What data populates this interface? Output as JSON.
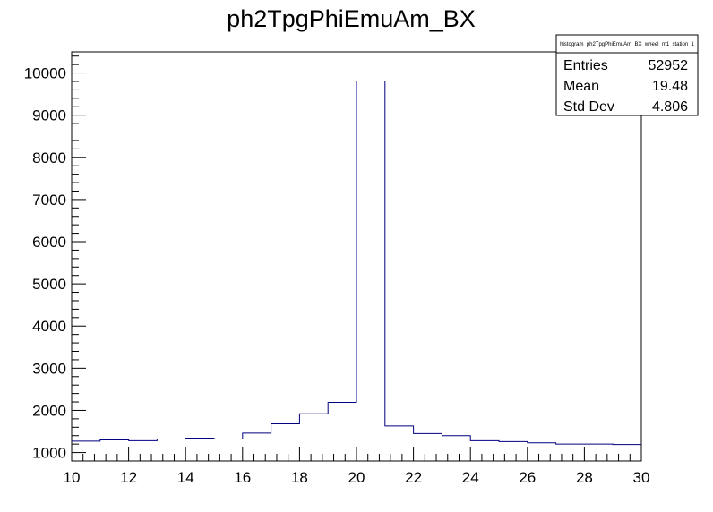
{
  "chart_data": {
    "type": "bar",
    "title": "ph2TpgPhiEmuAm_BX",
    "xlabel": "",
    "ylabel": "",
    "xlim": [
      10,
      30
    ],
    "ylim": [
      800,
      10500
    ],
    "x_ticks": [
      10,
      12,
      14,
      16,
      18,
      20,
      22,
      24,
      26,
      28,
      30
    ],
    "y_ticks": [
      1000,
      2000,
      3000,
      4000,
      5000,
      6000,
      7000,
      8000,
      9000,
      10000
    ],
    "bin_width": 1,
    "bin_edges": [
      10,
      11,
      12,
      13,
      14,
      15,
      16,
      17,
      18,
      19,
      20,
      21,
      22,
      23,
      24,
      25,
      26,
      27,
      28,
      29,
      30
    ],
    "values": [
      1270,
      1300,
      1280,
      1320,
      1340,
      1320,
      1460,
      1680,
      1920,
      2190,
      9810,
      1630,
      1450,
      1400,
      1280,
      1260,
      1230,
      1200,
      1200,
      1190
    ],
    "line_color": "#000080",
    "stats_box": {
      "title": "histogram_ph2TpgPhiEmuAm_BX_wheel_m1_station_1",
      "entries_label": "Entries",
      "entries_value": "52952",
      "mean_label": "Mean",
      "mean_value": "19.48",
      "stddev_label": "Std Dev",
      "stddev_value": "4.806"
    }
  }
}
